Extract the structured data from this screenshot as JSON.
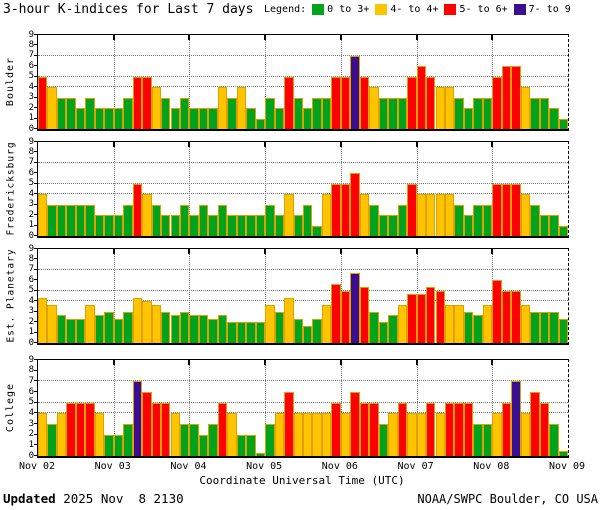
{
  "title": "3-hour K-indices for Last 7 days",
  "legend": {
    "label": "Legend:",
    "items": [
      {
        "label": "0 to 3+",
        "color": "#00a31c"
      },
      {
        "label": "4- to 4+",
        "color": "#ffc400"
      },
      {
        "label": "5- to 6+",
        "color": "#ff0000"
      },
      {
        "label": "7- to 9",
        "color": "#390e90"
      }
    ]
  },
  "xaxis": {
    "label": "Coordinate Universal Time (UTC)",
    "ticks": [
      "Nov 02",
      "Nov 03",
      "Nov 04",
      "Nov 05",
      "Nov 06",
      "Nov 07",
      "Nov 08",
      "Nov 09"
    ]
  },
  "footer": {
    "updated_label": "Updated",
    "updated_value": " 2025 Nov  8 2130",
    "credit": "NOAA/SWPC Boulder, CO USA"
  },
  "colors": {
    "green": "#00a31c",
    "yellow": "#ffc400",
    "red": "#ff0000",
    "purple": "#390e90",
    "bar_outline": "#dfa000",
    "grid": "#7a7a7a",
    "thresholds": {
      "yellow_min": 3.67,
      "red_min": 4.67,
      "purple_min": 6.67
    }
  },
  "chart_data": [
    {
      "type": "bar",
      "station": "Boulder",
      "ylim": [
        0,
        9
      ],
      "grid_y": [
        4,
        5,
        7
      ],
      "bars_per_day": 8,
      "days": 7,
      "values": [
        5,
        4,
        3,
        3,
        2,
        3,
        2,
        2,
        2,
        3,
        5,
        5,
        4,
        3,
        2,
        3,
        2,
        2,
        2,
        4,
        3,
        4,
        2,
        1,
        3,
        2,
        5,
        3,
        2,
        3,
        3,
        5,
        5,
        7,
        5,
        4,
        3,
        3,
        3,
        5,
        6,
        5,
        4,
        4,
        3,
        2,
        3,
        3,
        5,
        6,
        6,
        4,
        3,
        3,
        2,
        1
      ]
    },
    {
      "type": "bar",
      "station": "Fredericksburg",
      "ylim": [
        0,
        9
      ],
      "grid_y": [
        4,
        5,
        7
      ],
      "bars_per_day": 8,
      "days": 7,
      "values": [
        4,
        3,
        3,
        3,
        3,
        3,
        2,
        2,
        2,
        3,
        5,
        4,
        3,
        2,
        2,
        3,
        2,
        3,
        2,
        3,
        2,
        2,
        2,
        2,
        3,
        2,
        4,
        2,
        3,
        1,
        4,
        5,
        5,
        6,
        4,
        3,
        2,
        2,
        3,
        5,
        4,
        4,
        4,
        4,
        3,
        2,
        3,
        3,
        5,
        5,
        5,
        4,
        3,
        2,
        2,
        1
      ]
    },
    {
      "type": "bar",
      "station": "Est. Planetary",
      "ylim": [
        0,
        9
      ],
      "grid_y": [
        4,
        5,
        7
      ],
      "bars_per_day": 8,
      "days": 7,
      "values": [
        4.33,
        3.67,
        2.67,
        2.33,
        2.33,
        3.67,
        2.67,
        3,
        2.33,
        3,
        4.33,
        4,
        3.67,
        3,
        2.67,
        3,
        2.67,
        2.67,
        2.33,
        2.67,
        2,
        2,
        2,
        2,
        3.67,
        3,
        4.33,
        2.33,
        1.67,
        2.33,
        3.67,
        5.67,
        5,
        6.67,
        5.33,
        3,
        2,
        2.67,
        3.67,
        4.67,
        4.67,
        5.33,
        5,
        3.67,
        3.67,
        3,
        2.67,
        3.67,
        6,
        5,
        5,
        3.67,
        3,
        3,
        3,
        2.33
      ]
    },
    {
      "type": "bar",
      "station": "College",
      "ylim": [
        0,
        9
      ],
      "grid_y": [
        4,
        5,
        7
      ],
      "bars_per_day": 8,
      "days": 7,
      "values": [
        4,
        3,
        4,
        5,
        5,
        5,
        4,
        2,
        2,
        3,
        7,
        6,
        5,
        5,
        4,
        3,
        3,
        2,
        3,
        5,
        4,
        2,
        2,
        0.3,
        3,
        4,
        6,
        4,
        4,
        4,
        4,
        5,
        4,
        6,
        5,
        5,
        3,
        4,
        5,
        4,
        4,
        5,
        4,
        5,
        5,
        5,
        3,
        3,
        4,
        5,
        7,
        4,
        6,
        5,
        3,
        0.5
      ]
    }
  ]
}
